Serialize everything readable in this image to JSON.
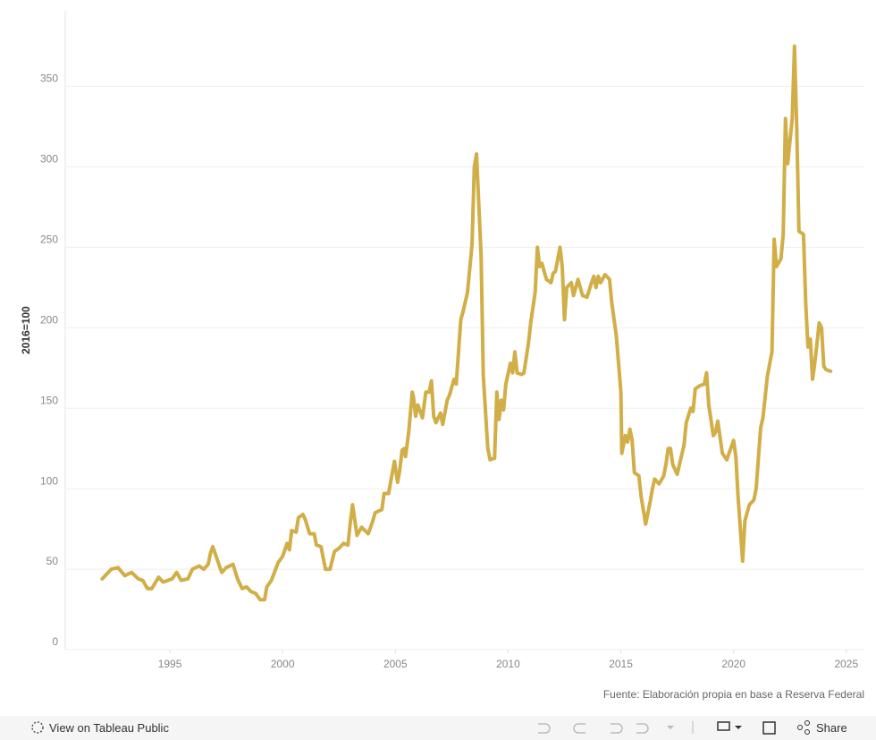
{
  "chart_data": {
    "type": "line",
    "y_label": "2016=100",
    "source": "Fuente: Elaboración propia en base a Reserva Federal",
    "color": "#d1ae47",
    "grid": true,
    "xlim": [
      1990.36,
      2025.8
    ],
    "ylim": [
      0,
      397
    ],
    "xticks": [
      1995,
      2000,
      2005,
      2010,
      2015,
      2020,
      2025
    ],
    "yticks": [
      0,
      50,
      100,
      150,
      200,
      250,
      300,
      350
    ],
    "x": [
      1992.0,
      1992.4,
      1992.7,
      1993.0,
      1993.3,
      1993.6,
      1993.8,
      1994.0,
      1994.2,
      1994.5,
      1994.7,
      1995.1,
      1995.3,
      1995.5,
      1995.8,
      1996.0,
      1996.3,
      1996.5,
      1996.7,
      1996.8,
      1996.9,
      1997.2,
      1997.3,
      1997.5,
      1997.8,
      1998.0,
      1998.2,
      1998.4,
      1998.6,
      1998.8,
      1999.0,
      1999.2,
      1999.3,
      1999.5,
      1999.8,
      2000.0,
      2000.2,
      2000.3,
      2000.4,
      2000.6,
      2000.7,
      2000.9,
      2001.0,
      2001.2,
      2001.4,
      2001.5,
      2001.7,
      2001.9,
      2002.1,
      2002.3,
      2002.5,
      2002.7,
      2002.9,
      2003.0,
      2003.1,
      2003.3,
      2003.5,
      2003.8,
      2004.0,
      2004.1,
      2004.4,
      2004.5,
      2004.7,
      2004.8,
      2004.96,
      2005.1,
      2005.2,
      2005.3,
      2005.4,
      2005.45,
      2005.6,
      2005.75,
      2005.8,
      2005.9,
      2006.0,
      2006.1,
      2006.2,
      2006.35,
      2006.5,
      2006.6,
      2006.7,
      2006.8,
      2007.0,
      2007.1,
      2007.3,
      2007.4,
      2007.6,
      2007.7,
      2007.9,
      2008.0,
      2008.2,
      2008.4,
      2008.5,
      2008.6,
      2008.8,
      2008.9,
      2009.1,
      2009.2,
      2009.4,
      2009.5,
      2009.6,
      2009.7,
      2009.8,
      2009.9,
      2010.1,
      2010.2,
      2010.3,
      2010.4,
      2010.6,
      2010.7,
      2010.9,
      2011.0,
      2011.2,
      2011.3,
      2011.4,
      2011.5,
      2011.7,
      2011.9,
      2012.0,
      2012.1,
      2012.3,
      2012.4,
      2012.5,
      2012.6,
      2012.8,
      2012.9,
      2013.1,
      2013.3,
      2013.5,
      2013.7,
      2013.8,
      2013.9,
      2014.0,
      2014.1,
      2014.3,
      2014.5,
      2014.6,
      2014.8,
      2015.0,
      2015.04,
      2015.2,
      2015.3,
      2015.4,
      2015.5,
      2015.6,
      2015.8,
      2015.9,
      2016.1,
      2016.3,
      2016.4,
      2016.5,
      2016.7,
      2016.9,
      2017.0,
      2017.1,
      2017.2,
      2017.3,
      2017.5,
      2017.6,
      2017.8,
      2017.9,
      2018.1,
      2018.2,
      2018.3,
      2018.5,
      2018.7,
      2018.8,
      2018.9,
      2019.1,
      2019.2,
      2019.3,
      2019.5,
      2019.7,
      2019.8,
      2020.0,
      2020.1,
      2020.2,
      2020.4,
      2020.5,
      2020.7,
      2020.9,
      2021.0,
      2021.2,
      2021.3,
      2021.5,
      2021.7,
      2021.8,
      2021.9,
      2022.1,
      2022.2,
      2022.3,
      2022.4,
      2022.6,
      2022.7,
      2022.8,
      2022.9,
      2023.1,
      2023.2,
      2023.3,
      2023.4,
      2023.5,
      2023.6,
      2023.8,
      2023.9,
      2024.0,
      2024.1,
      2024.3
    ],
    "values": [
      44,
      50,
      51,
      46,
      48,
      44,
      43,
      38,
      38,
      45,
      42,
      44,
      48,
      43,
      44,
      50,
      52,
      50,
      53,
      60,
      64,
      52,
      48,
      51,
      53,
      44,
      38,
      39,
      36,
      35,
      31,
      31,
      39,
      43,
      54,
      58,
      66,
      62,
      74,
      73,
      82,
      84,
      81,
      72,
      72,
      65,
      64,
      50,
      50,
      61,
      63,
      66,
      65,
      79,
      90,
      71,
      76,
      72,
      80,
      85,
      87,
      97,
      97,
      105,
      117,
      104,
      112,
      124,
      125,
      120,
      136,
      160,
      157,
      145,
      152,
      148,
      144,
      160,
      160,
      167,
      145,
      141,
      147,
      140,
      155,
      158,
      168,
      165,
      205,
      210,
      222,
      252,
      300,
      308,
      245,
      170,
      125,
      118,
      119,
      160,
      143,
      155,
      149,
      165,
      178,
      172,
      185,
      172,
      171,
      172,
      190,
      203,
      222,
      250,
      238,
      240,
      230,
      228,
      234,
      235,
      250,
      238,
      205,
      225,
      228,
      220,
      230,
      220,
      219,
      228,
      232,
      225,
      232,
      228,
      233,
      230,
      215,
      195,
      160,
      122,
      133,
      129,
      137,
      130,
      110,
      108,
      95,
      78,
      92,
      100,
      106,
      103,
      108,
      115,
      125,
      125,
      115,
      109,
      115,
      127,
      141,
      150,
      148,
      162,
      164,
      165,
      172,
      152,
      133,
      135,
      142,
      122,
      118,
      122,
      130,
      120,
      95,
      55,
      80,
      90,
      93,
      100,
      138,
      144,
      170,
      185,
      255,
      238,
      243,
      258,
      330,
      302,
      330,
      375,
      325,
      260,
      258,
      215,
      188,
      193,
      168,
      178,
      203,
      200,
      176,
      174,
      173
    ]
  },
  "toolbar": {
    "view_label": "View on Tableau Public",
    "share_label": "Share"
  }
}
